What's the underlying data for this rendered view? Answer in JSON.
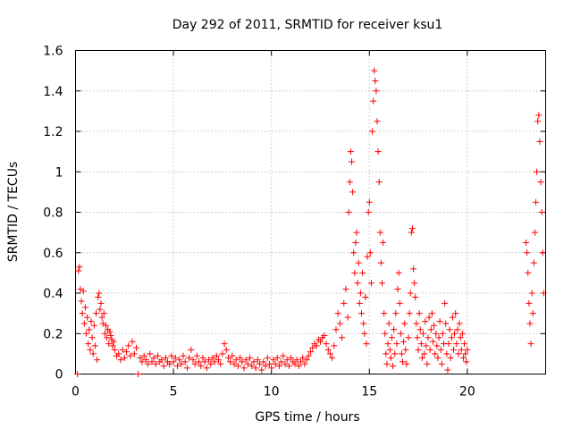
{
  "chart_data": {
    "type": "scatter",
    "title": "Day 292 of 2011, SRMTID for receiver ksu1",
    "xlabel": "GPS time / hours",
    "ylabel": "SRMTID / TECUs",
    "xlim": [
      0,
      24
    ],
    "ylim": [
      0,
      1.6
    ],
    "x_ticks": [
      0,
      5,
      10,
      15,
      20
    ],
    "x_tick_labels": [
      "0",
      "5",
      "10",
      "15",
      "20"
    ],
    "y_ticks": [
      0,
      0.2,
      0.4,
      0.6,
      0.8,
      1,
      1.2,
      1.4,
      1.6
    ],
    "y_tick_labels": [
      "0",
      "0.2",
      "0.4",
      "0.6",
      "0.8",
      "1",
      "1.2",
      "1.4",
      "1.6"
    ],
    "grid": true,
    "marker": "+",
    "color": "#ff0000",
    "series": [
      {
        "name": "ksu1",
        "points": [
          [
            0.1,
            0.0
          ],
          [
            0.15,
            0.51
          ],
          [
            0.2,
            0.53
          ],
          [
            0.25,
            0.42
          ],
          [
            0.3,
            0.36
          ],
          [
            0.35,
            0.3
          ],
          [
            0.4,
            0.41
          ],
          [
            0.45,
            0.25
          ],
          [
            0.5,
            0.33
          ],
          [
            0.55,
            0.2
          ],
          [
            0.6,
            0.28
          ],
          [
            0.65,
            0.15
          ],
          [
            0.7,
            0.22
          ],
          [
            0.75,
            0.12
          ],
          [
            0.8,
            0.26
          ],
          [
            0.85,
            0.18
          ],
          [
            0.9,
            0.1
          ],
          [
            0.95,
            0.24
          ],
          [
            1.0,
            0.14
          ],
          [
            1.05,
            0.3
          ],
          [
            1.1,
            0.07
          ],
          [
            1.15,
            0.38
          ],
          [
            1.2,
            0.4
          ],
          [
            1.25,
            0.32
          ],
          [
            1.3,
            0.35
          ],
          [
            1.35,
            0.28
          ],
          [
            1.4,
            0.25
          ],
          [
            1.45,
            0.3
          ],
          [
            1.5,
            0.2
          ],
          [
            1.55,
            0.24
          ],
          [
            1.6,
            0.18
          ],
          [
            1.65,
            0.22
          ],
          [
            1.7,
            0.15
          ],
          [
            1.75,
            0.21
          ],
          [
            1.8,
            0.19
          ],
          [
            1.85,
            0.17
          ],
          [
            1.9,
            0.14
          ],
          [
            1.95,
            0.16
          ],
          [
            2.0,
            0.12
          ],
          [
            2.1,
            0.09
          ],
          [
            2.2,
            0.1
          ],
          [
            2.3,
            0.07
          ],
          [
            2.4,
            0.12
          ],
          [
            2.5,
            0.08
          ],
          [
            2.6,
            0.11
          ],
          [
            2.7,
            0.14
          ],
          [
            2.8,
            0.09
          ],
          [
            2.9,
            0.16
          ],
          [
            3.0,
            0.1
          ],
          [
            3.1,
            0.13
          ],
          [
            3.2,
            0.0
          ],
          [
            3.3,
            0.08
          ],
          [
            3.4,
            0.06
          ],
          [
            3.5,
            0.09
          ],
          [
            3.6,
            0.07
          ],
          [
            3.7,
            0.05
          ],
          [
            3.8,
            0.1
          ],
          [
            3.9,
            0.06
          ],
          [
            4.0,
            0.08
          ],
          [
            4.1,
            0.05
          ],
          [
            4.2,
            0.09
          ],
          [
            4.3,
            0.06
          ],
          [
            4.4,
            0.07
          ],
          [
            4.5,
            0.04
          ],
          [
            4.6,
            0.08
          ],
          [
            4.7,
            0.06
          ],
          [
            4.8,
            0.05
          ],
          [
            4.9,
            0.09
          ],
          [
            5.0,
            0.06
          ],
          [
            5.1,
            0.08
          ],
          [
            5.2,
            0.04
          ],
          [
            5.3,
            0.07
          ],
          [
            5.4,
            0.05
          ],
          [
            5.5,
            0.09
          ],
          [
            5.6,
            0.06
          ],
          [
            5.7,
            0.03
          ],
          [
            5.8,
            0.08
          ],
          [
            5.9,
            0.12
          ],
          [
            6.0,
            0.07
          ],
          [
            6.1,
            0.05
          ],
          [
            6.2,
            0.09
          ],
          [
            6.3,
            0.06
          ],
          [
            6.4,
            0.04
          ],
          [
            6.5,
            0.08
          ],
          [
            6.6,
            0.06
          ],
          [
            6.7,
            0.03
          ],
          [
            6.8,
            0.07
          ],
          [
            6.9,
            0.05
          ],
          [
            7.0,
            0.08
          ],
          [
            7.1,
            0.06
          ],
          [
            7.2,
            0.09
          ],
          [
            7.3,
            0.07
          ],
          [
            7.4,
            0.05
          ],
          [
            7.5,
            0.1
          ],
          [
            7.6,
            0.15
          ],
          [
            7.7,
            0.12
          ],
          [
            7.8,
            0.08
          ],
          [
            7.9,
            0.06
          ],
          [
            8.0,
            0.09
          ],
          [
            8.1,
            0.05
          ],
          [
            8.2,
            0.07
          ],
          [
            8.3,
            0.04
          ],
          [
            8.4,
            0.08
          ],
          [
            8.5,
            0.06
          ],
          [
            8.6,
            0.03
          ],
          [
            8.7,
            0.07
          ],
          [
            8.8,
            0.05
          ],
          [
            8.9,
            0.08
          ],
          [
            9.0,
            0.04
          ],
          [
            9.1,
            0.06
          ],
          [
            9.2,
            0.03
          ],
          [
            9.3,
            0.07
          ],
          [
            9.4,
            0.05
          ],
          [
            9.5,
            0.02
          ],
          [
            9.6,
            0.06
          ],
          [
            9.7,
            0.04
          ],
          [
            9.8,
            0.08
          ],
          [
            9.9,
            0.05
          ],
          [
            10.0,
            0.03
          ],
          [
            10.1,
            0.07
          ],
          [
            10.2,
            0.05
          ],
          [
            10.3,
            0.08
          ],
          [
            10.4,
            0.04
          ],
          [
            10.5,
            0.06
          ],
          [
            10.6,
            0.09
          ],
          [
            10.7,
            0.05
          ],
          [
            10.8,
            0.07
          ],
          [
            10.9,
            0.04
          ],
          [
            11.0,
            0.08
          ],
          [
            11.1,
            0.06
          ],
          [
            11.2,
            0.05
          ],
          [
            11.3,
            0.07
          ],
          [
            11.4,
            0.04
          ],
          [
            11.5,
            0.06
          ],
          [
            11.6,
            0.08
          ],
          [
            11.7,
            0.05
          ],
          [
            11.8,
            0.07
          ],
          [
            11.9,
            0.09
          ],
          [
            12.0,
            0.11
          ],
          [
            12.1,
            0.13
          ],
          [
            12.2,
            0.15
          ],
          [
            12.3,
            0.14
          ],
          [
            12.4,
            0.17
          ],
          [
            12.5,
            0.16
          ],
          [
            12.6,
            0.18
          ],
          [
            12.7,
            0.19
          ],
          [
            12.8,
            0.15
          ],
          [
            12.9,
            0.12
          ],
          [
            13.0,
            0.1
          ],
          [
            13.1,
            0.08
          ],
          [
            13.2,
            0.14
          ],
          [
            13.3,
            0.22
          ],
          [
            13.4,
            0.3
          ],
          [
            13.5,
            0.25
          ],
          [
            13.6,
            0.18
          ],
          [
            13.7,
            0.35
          ],
          [
            13.8,
            0.42
          ],
          [
            13.9,
            0.28
          ],
          [
            13.95,
            0.8
          ],
          [
            14.0,
            0.95
          ],
          [
            14.05,
            1.1
          ],
          [
            14.1,
            1.05
          ],
          [
            14.15,
            0.9
          ],
          [
            14.2,
            0.6
          ],
          [
            14.25,
            0.5
          ],
          [
            14.3,
            0.65
          ],
          [
            14.35,
            0.7
          ],
          [
            14.4,
            0.45
          ],
          [
            14.45,
            0.55
          ],
          [
            14.5,
            0.35
          ],
          [
            14.55,
            0.4
          ],
          [
            14.6,
            0.3
          ],
          [
            14.65,
            0.5
          ],
          [
            14.7,
            0.25
          ],
          [
            14.75,
            0.2
          ],
          [
            14.8,
            0.38
          ],
          [
            14.85,
            0.15
          ],
          [
            14.9,
            0.58
          ],
          [
            14.95,
            0.8
          ],
          [
            15.0,
            0.85
          ],
          [
            15.05,
            0.6
          ],
          [
            15.1,
            0.45
          ],
          [
            15.15,
            1.2
          ],
          [
            15.2,
            1.35
          ],
          [
            15.25,
            1.5
          ],
          [
            15.3,
            1.45
          ],
          [
            15.35,
            1.4
          ],
          [
            15.4,
            1.25
          ],
          [
            15.45,
            1.1
          ],
          [
            15.5,
            0.95
          ],
          [
            15.55,
            0.7
          ],
          [
            15.6,
            0.55
          ],
          [
            15.65,
            0.45
          ],
          [
            15.7,
            0.65
          ],
          [
            15.75,
            0.3
          ],
          [
            15.8,
            0.2
          ],
          [
            15.85,
            0.1
          ],
          [
            15.9,
            0.05
          ],
          [
            15.95,
            0.15
          ],
          [
            16.0,
            0.25
          ],
          [
            16.05,
            0.12
          ],
          [
            16.1,
            0.08
          ],
          [
            16.15,
            0.18
          ],
          [
            16.2,
            0.04
          ],
          [
            16.25,
            0.22
          ],
          [
            16.3,
            0.1
          ],
          [
            16.35,
            0.3
          ],
          [
            16.4,
            0.15
          ],
          [
            16.45,
            0.42
          ],
          [
            16.5,
            0.5
          ],
          [
            16.55,
            0.35
          ],
          [
            16.6,
            0.2
          ],
          [
            16.65,
            0.1
          ],
          [
            16.7,
            0.06
          ],
          [
            16.75,
            0.16
          ],
          [
            16.8,
            0.25
          ],
          [
            16.85,
            0.12
          ],
          [
            16.9,
            0.05
          ],
          [
            17.0,
            0.18
          ],
          [
            17.05,
            0.3
          ],
          [
            17.1,
            0.4
          ],
          [
            17.15,
            0.7
          ],
          [
            17.2,
            0.72
          ],
          [
            17.25,
            0.52
          ],
          [
            17.3,
            0.45
          ],
          [
            17.35,
            0.38
          ],
          [
            17.4,
            0.25
          ],
          [
            17.45,
            0.18
          ],
          [
            17.5,
            0.12
          ],
          [
            17.55,
            0.3
          ],
          [
            17.6,
            0.22
          ],
          [
            17.65,
            0.15
          ],
          [
            17.7,
            0.08
          ],
          [
            17.75,
            0.2
          ],
          [
            17.8,
            0.1
          ],
          [
            17.85,
            0.26
          ],
          [
            17.9,
            0.14
          ],
          [
            17.95,
            0.05
          ],
          [
            18.0,
            0.18
          ],
          [
            18.05,
            0.28
          ],
          [
            18.1,
            0.12
          ],
          [
            18.15,
            0.22
          ],
          [
            18.2,
            0.3
          ],
          [
            18.25,
            0.16
          ],
          [
            18.3,
            0.24
          ],
          [
            18.35,
            0.1
          ],
          [
            18.4,
            0.2
          ],
          [
            18.45,
            0.14
          ],
          [
            18.5,
            0.08
          ],
          [
            18.55,
            0.18
          ],
          [
            18.6,
            0.26
          ],
          [
            18.65,
            0.12
          ],
          [
            18.7,
            0.05
          ],
          [
            18.75,
            0.2
          ],
          [
            18.8,
            0.15
          ],
          [
            18.85,
            0.35
          ],
          [
            18.9,
            0.25
          ],
          [
            18.95,
            0.1
          ],
          [
            19.0,
            0.02
          ],
          [
            19.05,
            0.15
          ],
          [
            19.1,
            0.22
          ],
          [
            19.15,
            0.08
          ],
          [
            19.2,
            0.18
          ],
          [
            19.25,
            0.28
          ],
          [
            19.3,
            0.12
          ],
          [
            19.35,
            0.2
          ],
          [
            19.4,
            0.3
          ],
          [
            19.45,
            0.15
          ],
          [
            19.5,
            0.22
          ],
          [
            19.55,
            0.1
          ],
          [
            19.6,
            0.25
          ],
          [
            19.65,
            0.18
          ],
          [
            19.7,
            0.12
          ],
          [
            19.75,
            0.2
          ],
          [
            19.8,
            0.08
          ],
          [
            19.85,
            0.15
          ],
          [
            19.9,
            0.1
          ],
          [
            19.95,
            0.06
          ],
          [
            20.0,
            0.12
          ],
          [
            23.0,
            0.65
          ],
          [
            23.05,
            0.6
          ],
          [
            23.1,
            0.5
          ],
          [
            23.15,
            0.35
          ],
          [
            23.2,
            0.25
          ],
          [
            23.25,
            0.15
          ],
          [
            23.3,
            0.4
          ],
          [
            23.35,
            0.3
          ],
          [
            23.4,
            0.55
          ],
          [
            23.45,
            0.7
          ],
          [
            23.5,
            0.85
          ],
          [
            23.55,
            1.0
          ],
          [
            23.6,
            1.25
          ],
          [
            23.65,
            1.28
          ],
          [
            23.7,
            1.15
          ],
          [
            23.75,
            0.95
          ],
          [
            23.8,
            0.8
          ],
          [
            23.85,
            0.6
          ],
          [
            23.9,
            0.4
          ]
        ]
      }
    ]
  }
}
